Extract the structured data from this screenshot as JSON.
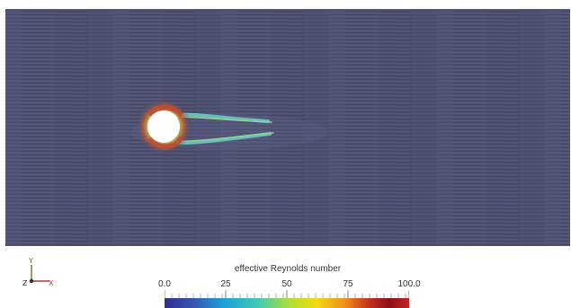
{
  "scene": {
    "field_name": "effective Reynolds number",
    "body_shape": "circle",
    "background_color": "#4c4d6f",
    "body_color": "#ffffff"
  },
  "orientation_axes": {
    "y_label": "Y",
    "z_label": "Z",
    "x_label": "X",
    "colors": {
      "x": "#b33a2e",
      "y": "#6e6e22",
      "z": "#2b2b2b"
    }
  },
  "legend": {
    "title": "effective Reynolds number",
    "range": [
      0.0,
      100.0
    ],
    "ticks": [
      "0.0",
      "25",
      "50",
      "75",
      "100.0"
    ],
    "colormap": [
      "#302f8f",
      "#3857b3",
      "#1ea0d7",
      "#40c9b5",
      "#b9df2f",
      "#f2da10",
      "#ef8d1d",
      "#c12d1f",
      "#8e1018",
      "#c42325"
    ]
  }
}
